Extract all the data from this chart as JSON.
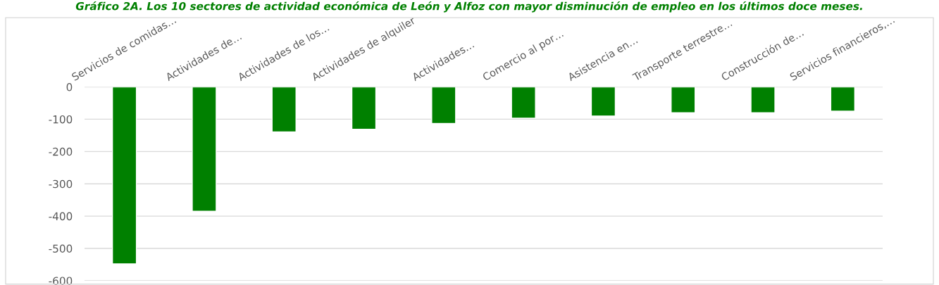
{
  "chart_data": {
    "type": "bar",
    "title": "Gráfico 2A. Los 10 sectores de actividad económica de León y Alfoz con mayor disminución de empleo en los últimos doce meses.",
    "categories": [
      "Servicios de comidas…",
      "Actividades de…",
      "Actividades de los…",
      "Actividades de alquiler",
      "Actividades…",
      "Comercio al por…",
      "Asistencia en…",
      "Transporte terrestre…",
      "Construcción de…",
      "Servicios financieros,…"
    ],
    "values": [
      -548,
      -385,
      -139,
      -131,
      -113,
      -97,
      -90,
      -80,
      -80,
      -75
    ],
    "color": "#008000",
    "ylim": [
      -600,
      0
    ],
    "yticks": [
      -600,
      -500,
      -400,
      -300,
      -200,
      -100,
      0
    ],
    "grid": "y"
  }
}
